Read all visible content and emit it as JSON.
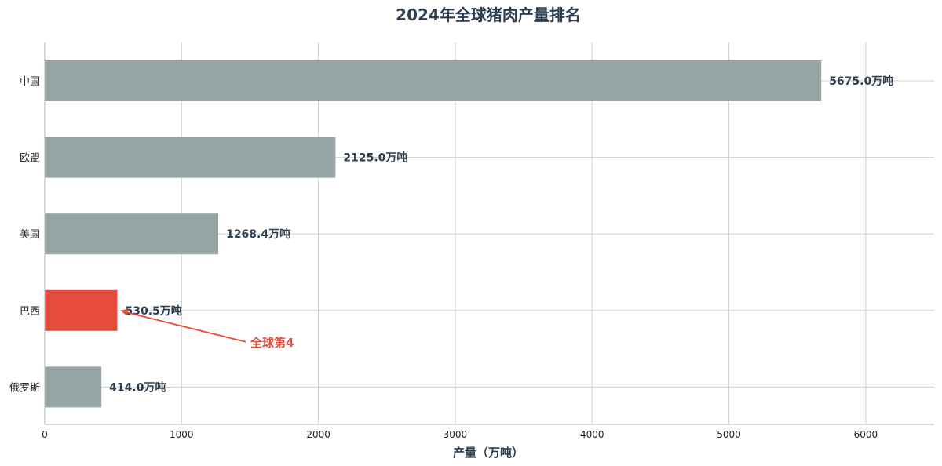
{
  "chart_data": {
    "type": "bar",
    "orientation": "horizontal",
    "title": "2024年全球猪肉产量排名",
    "xlabel": "产量（万吨）",
    "ylabel": "",
    "categories": [
      "中国",
      "欧盟",
      "美国",
      "巴西",
      "俄罗斯"
    ],
    "values": [
      5675.0,
      2125.0,
      1268.4,
      530.5,
      414.0
    ],
    "value_labels": [
      "5675.0万吨",
      "2125.0万吨",
      "1268.4万吨",
      "530.5万吨",
      "414.0万吨"
    ],
    "highlight_index": 3,
    "xlim": [
      0,
      6500
    ],
    "xticks": [
      0,
      1000,
      2000,
      3000,
      4000,
      5000,
      6000
    ],
    "xtick_labels": [
      "0",
      "1000",
      "2000",
      "3000",
      "4000",
      "5000",
      "6000"
    ],
    "grid": true,
    "annotation": {
      "text": "全球第4",
      "target_category": "巴西"
    },
    "colors": {
      "bar": "#95a5a6",
      "highlight": "#e74c3c",
      "text": "#2c3e50",
      "annotation": "#e74c3c"
    }
  }
}
